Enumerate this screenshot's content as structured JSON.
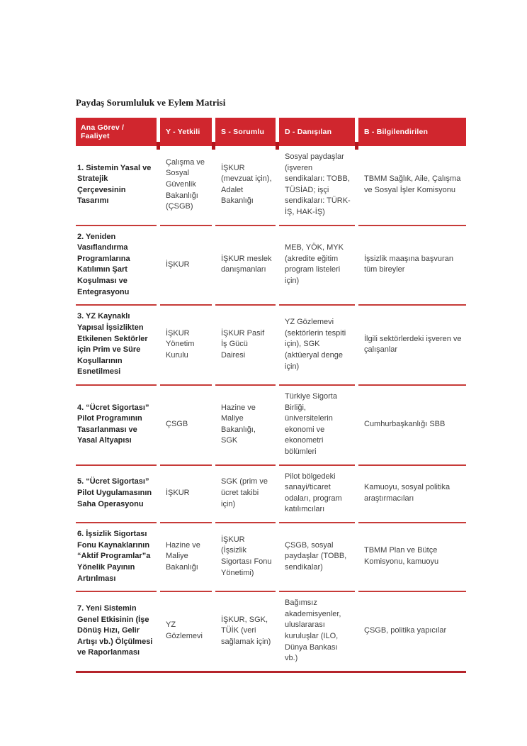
{
  "page": {
    "title": "Paydaş Sorumluluk ve Eylem Matrisi"
  },
  "colors": {
    "header_bg": "#d0262e",
    "header_text": "#ffffff",
    "row_separator": "#c73a38",
    "bottom_rule": "#b5242b",
    "task_text": "#232323",
    "body_text": "#3f3f3f"
  },
  "matrix": {
    "columns": [
      "Ana Görev / Faaliyet",
      "Y - Yetkili",
      "S - Sorumlu",
      "D - Danışılan",
      "B - Bilgilendirilen"
    ],
    "rows": [
      {
        "cells": [
          "1. Sistemin Yasal ve Stratejik Çerçevesinin Tasarımı",
          "Çalışma ve Sosyal Güvenlik Bakanlığı (ÇSGB)",
          "İŞKUR (mevzuat için), Adalet Bakanlığı",
          "Sosyal paydaşlar (işveren sendikaları: TOBB, TÜSİAD; işçi sendikaları: TÜRK-İŞ, HAK-İŞ)",
          "TBMM Sağlık, Aile, Çalışma ve Sosyal İşler Komisyonu"
        ]
      },
      {
        "cells": [
          "2. Yeniden Vasıflandırma Programlarına Katılımın Şart Koşulması ve Entegrasyonu",
          "İŞKUR",
          "İŞKUR meslek danışmanları",
          "MEB, YÖK, MYK (akredite eğitim program listeleri için)",
          "İşsizlik maaşına başvuran tüm bireyler"
        ]
      },
      {
        "cells": [
          "3. YZ Kaynaklı Yapısal İşsizlikten Etkilenen Sektörler için Prim ve Süre Koşullarının Esnetilmesi",
          "İŞKUR Yönetim Kurulu",
          "İŞKUR Pasif İş Gücü Dairesi",
          "YZ Gözlemevi (sektörlerin tespiti için), SGK (aktüeryal denge için)",
          "İlgili sektörlerdeki işveren ve çalışanlar"
        ]
      },
      {
        "cells": [
          "4. “Ücret Sigortası” Pilot Programının Tasarlanması ve Yasal Altyapısı",
          "ÇSGB",
          "Hazine ve Maliye Bakanlığı, SGK",
          "Türkiye Sigorta Birliği, üniversitelerin ekonomi ve ekonometri bölümleri",
          "Cumhurbaşkanlığı SBB"
        ]
      },
      {
        "cells": [
          "5. “Ücret Sigortası” Pilot Uygulamasının Saha Operasyonu",
          "İŞKUR",
          "SGK (prim ve ücret takibi için)",
          "Pilot bölgedeki sanayi/ticaret odaları, program katılımcıları",
          "Kamuoyu, sosyal politika araştırmacıları"
        ]
      },
      {
        "cells": [
          "6. İşsizlik Sigortası Fonu Kaynaklarının “Aktif Programlar”a Yönelik Payının Artırılması",
          "Hazine ve Maliye Bakanlığı",
          "İŞKUR (İşsizlik Sigortası Fonu Yönetimi)",
          "ÇSGB, sosyal paydaşlar (TOBB, sendikalar)",
          "TBMM Plan ve Bütçe Komisyonu, kamuoyu"
        ]
      },
      {
        "cells": [
          "7. Yeni Sistemin Genel Etkisinin (İşe Dönüş Hızı, Gelir Artışı vb.) Ölçülmesi ve Raporlanması",
          "YZ Gözlemevi",
          "İŞKUR, SGK, TÜİK (veri sağlamak için)",
          "Bağımsız akademisyenler, uluslararası kuruluşlar (ILO, Dünya Bankası vb.)",
          "ÇSGB, politika yapıcılar"
        ]
      }
    ]
  }
}
